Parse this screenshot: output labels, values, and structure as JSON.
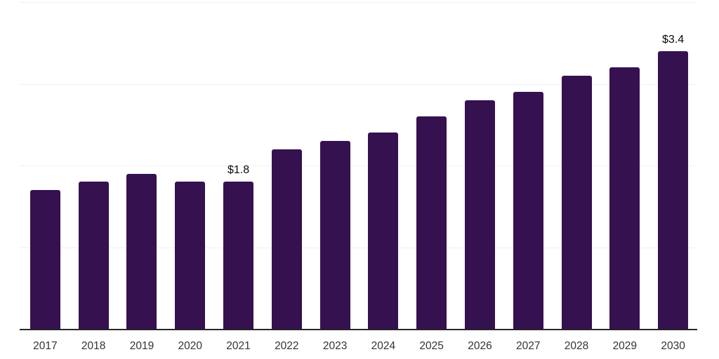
{
  "chart_data": {
    "type": "bar",
    "title": "",
    "xlabel": "",
    "ylabel": "",
    "categories": [
      "2017",
      "2018",
      "2019",
      "2020",
      "2021",
      "2022",
      "2023",
      "2024",
      "2025",
      "2026",
      "2027",
      "2028",
      "2029",
      "2030"
    ],
    "values": [
      1.7,
      1.8,
      1.9,
      1.8,
      1.8,
      2.2,
      2.3,
      2.4,
      2.6,
      2.8,
      2.9,
      3.1,
      3.2,
      3.4
    ],
    "point_labels": [
      "",
      "",
      "",
      "",
      "$1.8",
      "",
      "",
      "",
      "",
      "",
      "",
      "",
      "",
      "$3.4"
    ],
    "ylim": [
      0,
      4
    ],
    "gridline_values": [
      1,
      2,
      3,
      4
    ],
    "grid": "horizontal-only",
    "legend": "none",
    "y_axis_ticks_visible": false,
    "colors": {
      "bar": "#351150",
      "gridline": "#f0f0f0",
      "axis_line": "#262626",
      "tick_label": "#333333",
      "value_label": "#0a0a0a",
      "background": "#ffffff"
    }
  }
}
